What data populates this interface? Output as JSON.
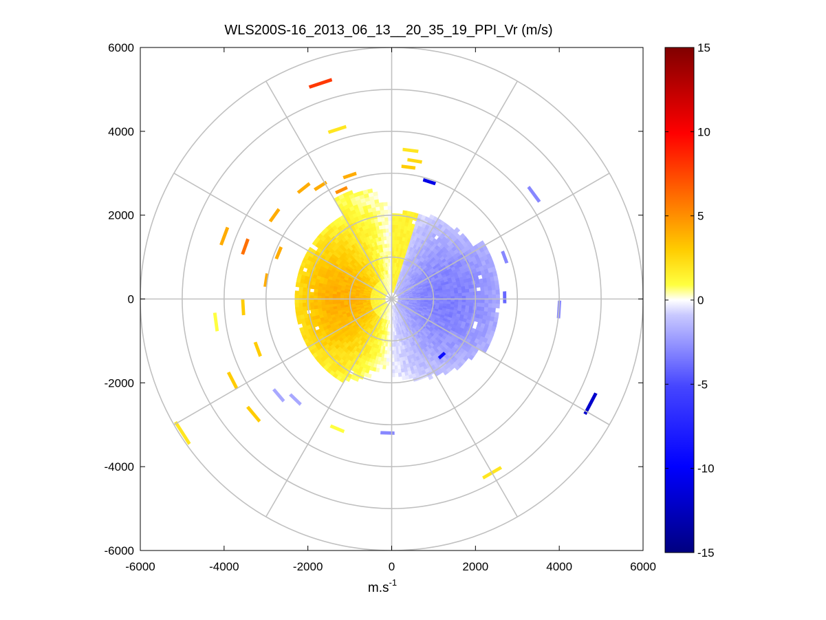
{
  "chart_data": {
    "type": "heatmap",
    "subtype": "polar-ppi",
    "title": "WLS200S-16_2013_06_13__20_35_19_PPI_Vr (m/s)",
    "xlabel": "m.s",
    "xlabel_superscript": "-1",
    "ylabel": "",
    "xlim": [
      -6000,
      6000
    ],
    "ylim": [
      -6000,
      6000
    ],
    "x_ticks": [
      -6000,
      -4000,
      -2000,
      0,
      2000,
      4000,
      6000
    ],
    "y_ticks": [
      -6000,
      -4000,
      -2000,
      0,
      2000,
      4000,
      6000
    ],
    "x_tick_labels": [
      "-6000",
      "-4000",
      "-2000",
      "0",
      "2000",
      "4000",
      "6000"
    ],
    "y_tick_labels": [
      "-6000",
      "-4000",
      "-2000",
      "0",
      "2000",
      "4000",
      "6000"
    ],
    "polar_grid": {
      "ring_radii": [
        1000,
        2000,
        3000,
        4000,
        5000,
        6000
      ],
      "spoke_angles_deg": [
        0,
        30,
        60,
        90,
        120,
        150,
        180,
        210,
        240,
        270,
        300,
        330
      ],
      "color": "#c0c0c0"
    },
    "colorbar": {
      "range": [
        -15,
        15
      ],
      "ticks": [
        15,
        10,
        5,
        0,
        -5,
        -10,
        -15
      ],
      "tick_labels": [
        "15",
        "10",
        "5",
        "0",
        "-5",
        "-10",
        "-15"
      ],
      "colormap": "blue-white-yellow-red"
    },
    "field": {
      "description_values": "radial velocity in m/s",
      "positive_sector_deg": [
        90,
        270
      ],
      "positive_peak_ms": 4,
      "negative_sector_deg": [
        -90,
        90
      ],
      "negative_peak_ms": -3,
      "max_range_positive": 2700,
      "max_range_negative": 2500
    },
    "scattered_gates": [
      {
        "x": -1700,
        "y": 5150,
        "v": 8
      },
      {
        "x": -1300,
        "y": 4050,
        "v": 2
      },
      {
        "x": 450,
        "y": 3550,
        "v": 2
      },
      {
        "x": 550,
        "y": 3300,
        "v": 2.5
      },
      {
        "x": 400,
        "y": 3150,
        "v": 3
      },
      {
        "x": 900,
        "y": 2800,
        "v": -11
      },
      {
        "x": -1000,
        "y": 2950,
        "v": 4
      },
      {
        "x": -1700,
        "y": 2700,
        "v": 4
      },
      {
        "x": -2100,
        "y": 2650,
        "v": 4
      },
      {
        "x": -1200,
        "y": 2600,
        "v": 5
      },
      {
        "x": -2800,
        "y": 2000,
        "v": 4
      },
      {
        "x": -4000,
        "y": 1500,
        "v": 4
      },
      {
        "x": -3500,
        "y": 1250,
        "v": 6
      },
      {
        "x": -2700,
        "y": 1100,
        "v": 4
      },
      {
        "x": -3000,
        "y": 450,
        "v": 4
      },
      {
        "x": 3400,
        "y": 2500,
        "v": -3
      },
      {
        "x": 2700,
        "y": 1000,
        "v": -3
      },
      {
        "x": 2700,
        "y": 40,
        "v": -4
      },
      {
        "x": 4000,
        "y": -250,
        "v": -3
      },
      {
        "x": 4750,
        "y": -2500,
        "v": -12
      },
      {
        "x": -3550,
        "y": -200,
        "v": 3
      },
      {
        "x": -4200,
        "y": -550,
        "v": 1
      },
      {
        "x": -3200,
        "y": -1200,
        "v": 3
      },
      {
        "x": -3800,
        "y": -1950,
        "v": 3
      },
      {
        "x": -3300,
        "y": -2750,
        "v": 3
      },
      {
        "x": -5000,
        "y": -3200,
        "v": 2
      },
      {
        "x": -2700,
        "y": -2300,
        "v": -2
      },
      {
        "x": -2300,
        "y": -2400,
        "v": -2
      },
      {
        "x": -1300,
        "y": -3100,
        "v": 1
      },
      {
        "x": -100,
        "y": -3200,
        "v": -3
      },
      {
        "x": 2400,
        "y": -4150,
        "v": 2
      },
      {
        "x": 1200,
        "y": -1350,
        "v": -9
      }
    ]
  }
}
